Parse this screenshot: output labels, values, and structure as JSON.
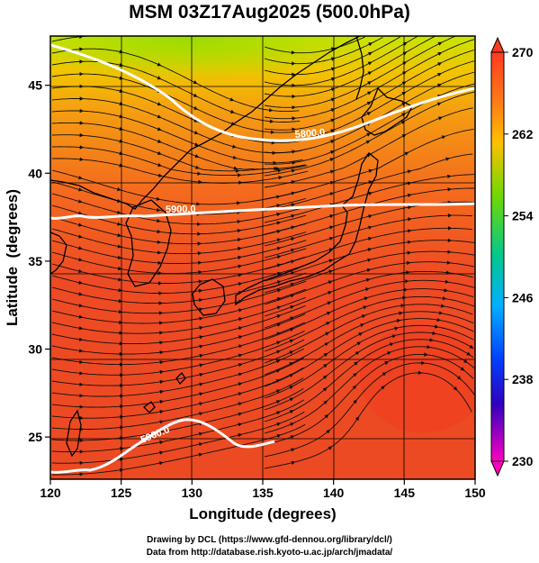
{
  "title": "MSM 03Z17Aug2025 (500.0hPa)",
  "axes": {
    "xlabel": "Longitude (degrees)",
    "ylabel": "Latitude  (degrees)",
    "xticks": [
      120,
      125,
      130,
      135,
      140,
      145,
      150
    ],
    "yticks": [
      25,
      30,
      35,
      40,
      45
    ],
    "xlim": [
      120,
      150
    ],
    "ylim": [
      22.6,
      47.8
    ]
  },
  "colorbar": {
    "ticks": [
      270,
      262,
      254,
      246,
      238,
      230
    ],
    "range": [
      230,
      270
    ]
  },
  "contours": {
    "labels": [
      "5800.0",
      "5900.0",
      "5900.0"
    ]
  },
  "credits": {
    "line1": "Drawing by DCL (https://www.gfd-dennou.org/library/dcl/)",
    "line2": "Data from http://database.rish.kyoto-u.ac.jp/arch/jmadata/"
  }
}
